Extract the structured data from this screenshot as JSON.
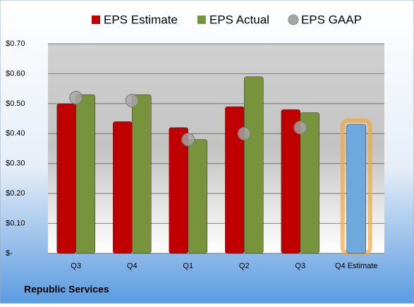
{
  "chart_data": {
    "type": "bar",
    "categories": [
      "Q3",
      "Q4",
      "Q1",
      "Q2",
      "Q3",
      "Q4 Estimate"
    ],
    "series": [
      {
        "name": "EPS Estimate",
        "color": "#c00000",
        "kind": "bar",
        "values": [
          0.5,
          0.44,
          0.42,
          0.49,
          0.48,
          0.43
        ],
        "colors": [
          "#c00000",
          "#c00000",
          "#c00000",
          "#c00000",
          "#c00000",
          "#6fa8dc"
        ]
      },
      {
        "name": "EPS Actual",
        "color": "#77933c",
        "kind": "bar",
        "values": [
          0.53,
          0.53,
          0.38,
          0.59,
          0.47,
          null
        ]
      },
      {
        "name": "EPS GAAP",
        "color": "#a6a6a6",
        "kind": "marker",
        "values": [
          0.52,
          0.51,
          0.38,
          0.4,
          0.42,
          null
        ]
      }
    ],
    "ylim": [
      0,
      0.7
    ],
    "yticks": [
      {
        "value": 0,
        "label": "$-"
      },
      {
        "value": 0.1,
        "label": "$0.10"
      },
      {
        "value": 0.2,
        "label": "$0.20"
      },
      {
        "value": 0.3,
        "label": "$0.30"
      },
      {
        "value": 0.4,
        "label": "$0.40"
      },
      {
        "value": 0.5,
        "label": "$0.50"
      },
      {
        "value": 0.6,
        "label": "$0.60"
      },
      {
        "value": 0.7,
        "label": "$0.70"
      }
    ],
    "grid": true,
    "legend": "top",
    "footer": "Republic Services"
  }
}
